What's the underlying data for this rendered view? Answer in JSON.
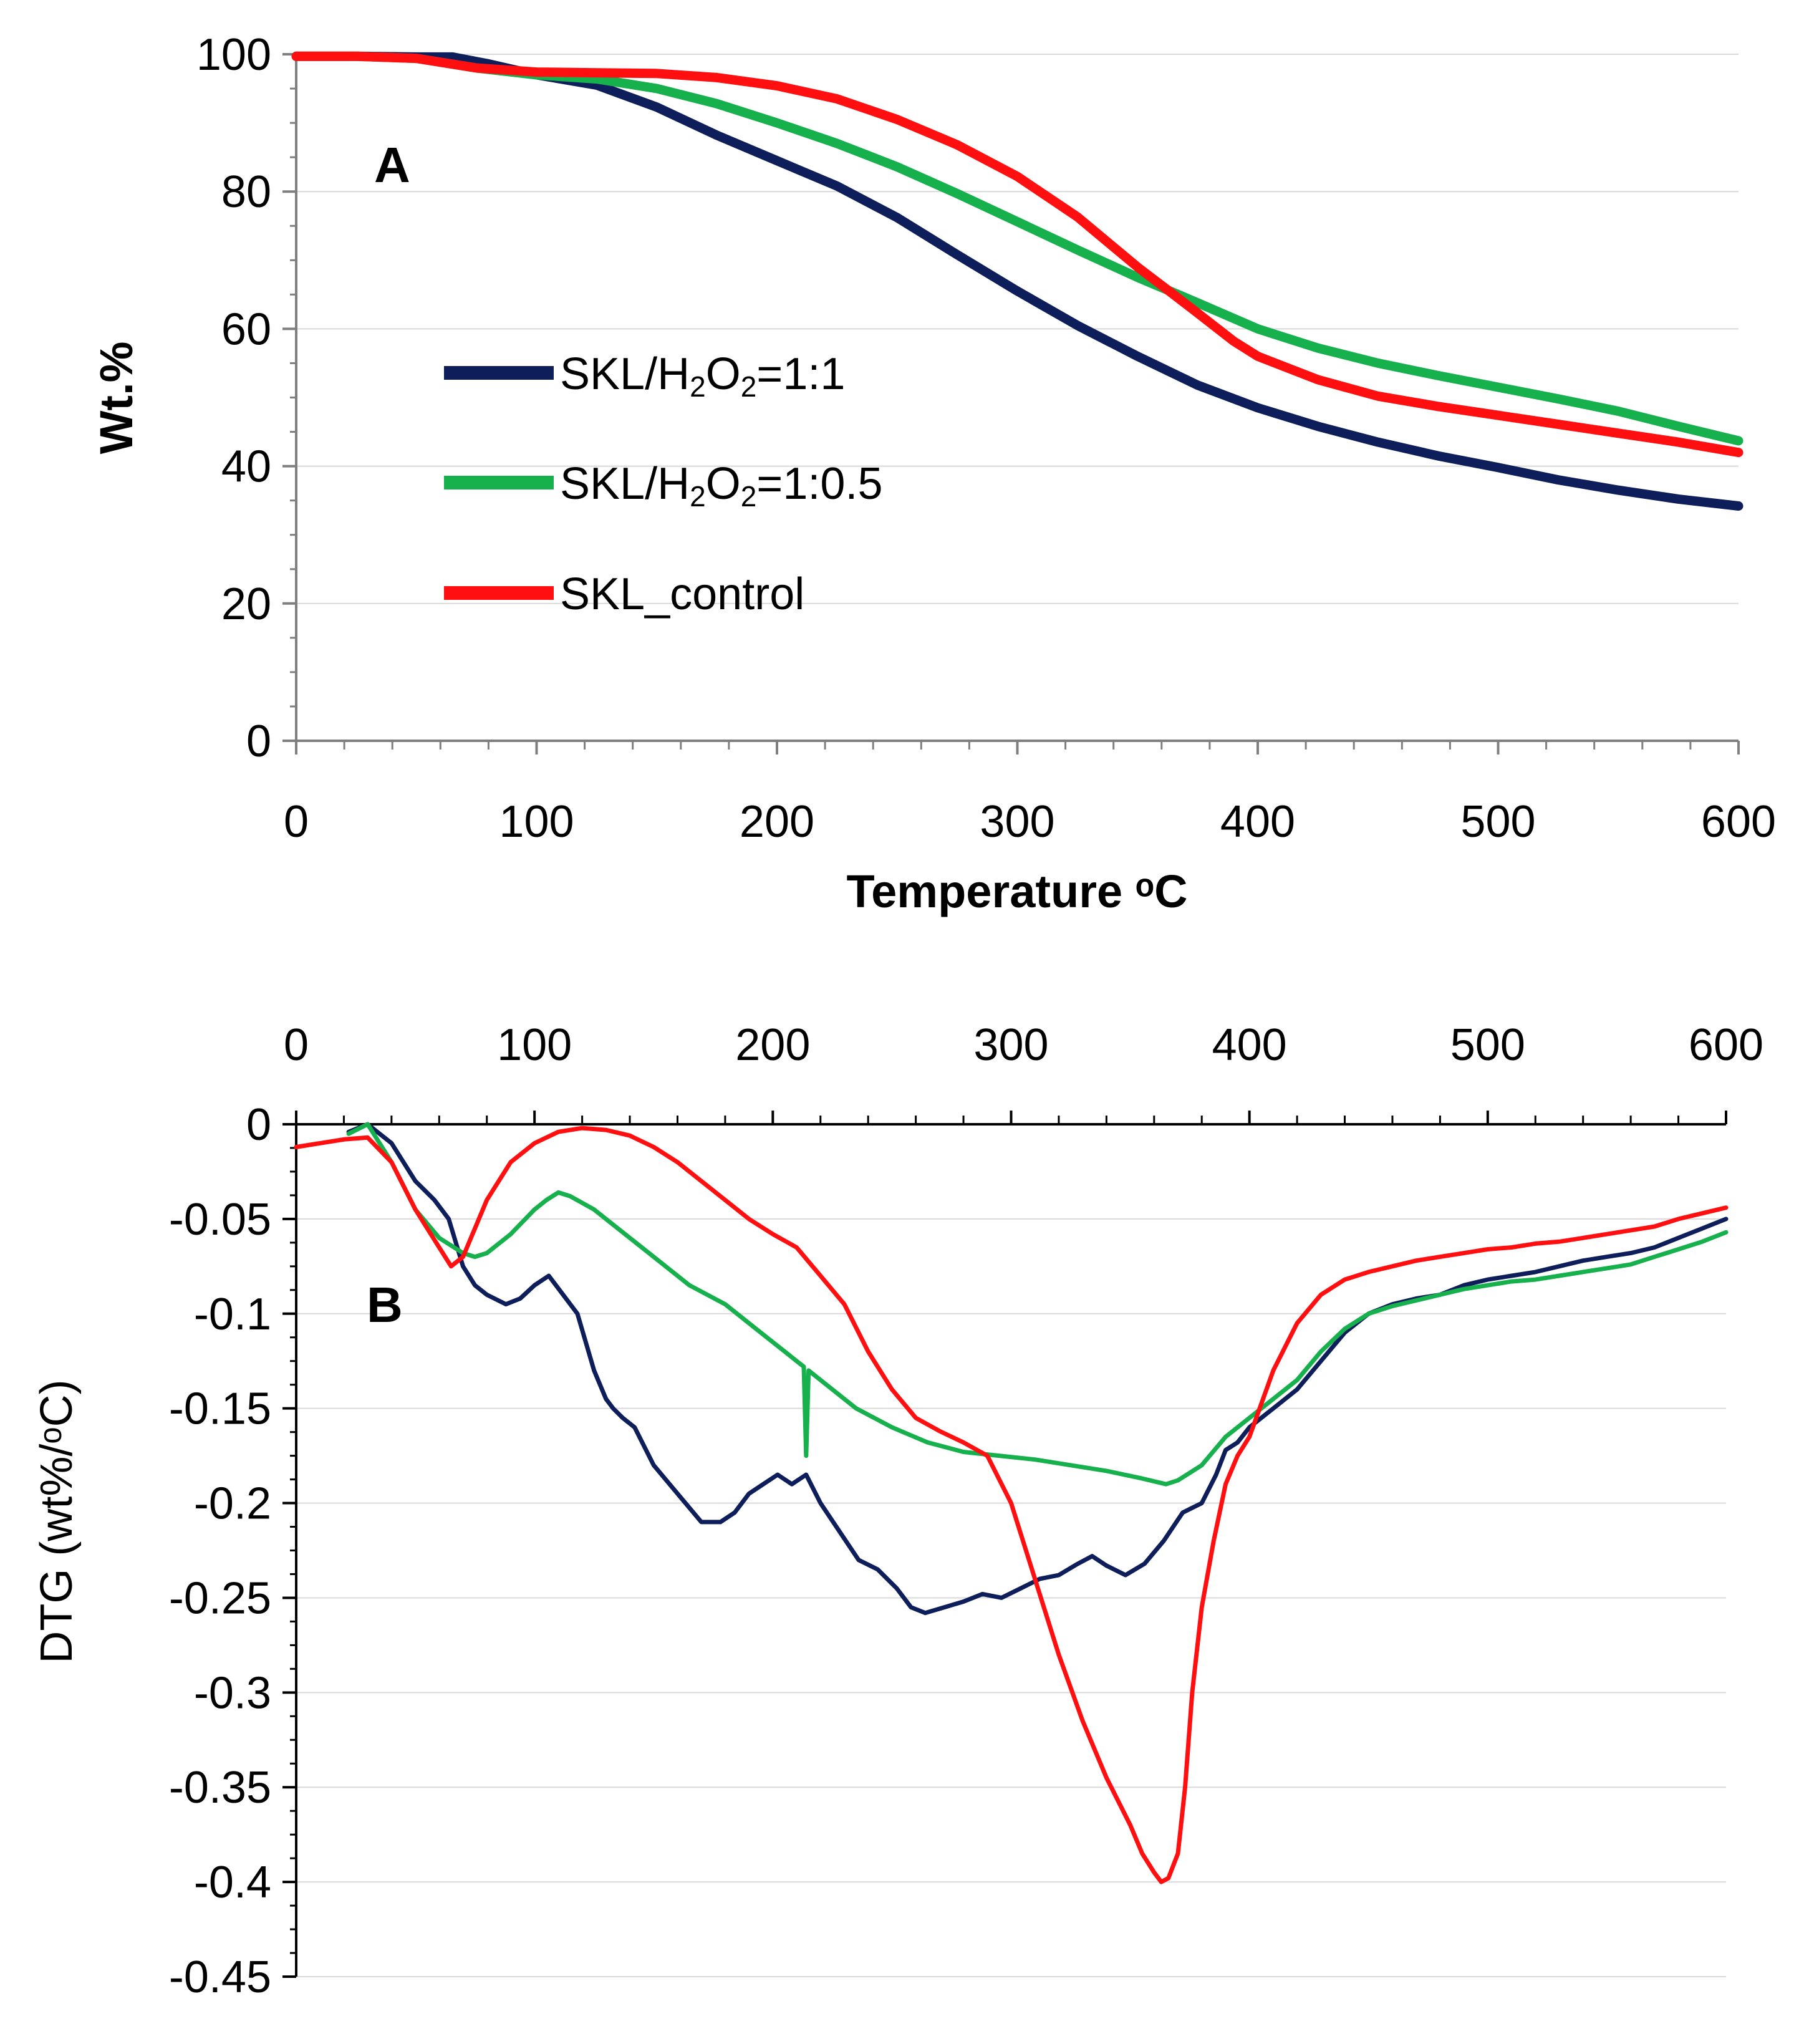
{
  "colors": {
    "skl_h2o2_1_1": "#0d1e5b",
    "skl_h2o2_1_05": "#16b04c",
    "skl_control": "#ff0f0f",
    "grid": "#d9d9d9",
    "axis": "#7f7f7f"
  },
  "chart_data": [
    {
      "panel": "A",
      "type": "line",
      "panel_label": "A",
      "xlabel": "Temperature ᵒC",
      "ylabel": "Wt.%",
      "xlim": [
        0,
        600
      ],
      "ylim": [
        0,
        100
      ],
      "x_ticks": [
        "0",
        "100",
        "200",
        "300",
        "400",
        "500",
        "600"
      ],
      "y_ticks": [
        "0",
        "20",
        "40",
        "60",
        "80",
        "100"
      ],
      "grid": true,
      "legend_position": "center-left",
      "legend": {
        "s1_prefix": "SKL/H",
        "s1_sub1": "2",
        "s1_mid": "O",
        "s1_sub2": "2",
        "s1_suffix": "=1:1",
        "s2_prefix": "SKL/H",
        "s2_sub1": "2",
        "s2_mid": "O",
        "s2_sub2": "2",
        "s2_suffix": "=1:0.5",
        "s3": "SKL_control"
      },
      "series": [
        {
          "name": "SKL/H2O2=1:1",
          "color_key": "skl_h2o2_1_1",
          "x": [
            0,
            25,
            50,
            65,
            80,
            100,
            125,
            150,
            175,
            200,
            225,
            250,
            275,
            300,
            325,
            350,
            375,
            400,
            425,
            450,
            475,
            500,
            525,
            550,
            575,
            600
          ],
          "y": [
            99.7,
            99.7,
            99.6,
            99.6,
            98.6,
            97.0,
            95.5,
            92.3,
            88.2,
            84.5,
            80.8,
            76.2,
            70.8,
            65.5,
            60.5,
            56.0,
            51.8,
            48.5,
            45.8,
            43.5,
            41.5,
            39.8,
            38.0,
            36.5,
            35.2,
            34.2
          ]
        },
        {
          "name": "SKL/H2O2=1:0.5",
          "color_key": "skl_h2o2_1_05",
          "x": [
            0,
            25,
            50,
            75,
            100,
            125,
            150,
            175,
            200,
            225,
            250,
            275,
            300,
            325,
            350,
            375,
            400,
            425,
            450,
            475,
            500,
            525,
            550,
            575,
            600
          ],
          "y": [
            99.7,
            99.7,
            99.4,
            98.0,
            97.0,
            96.4,
            95.0,
            92.8,
            90.0,
            87.0,
            83.6,
            79.7,
            75.6,
            71.5,
            67.5,
            63.8,
            60.0,
            57.2,
            55.0,
            53.2,
            51.5,
            49.8,
            48.0,
            45.8,
            43.7
          ]
        },
        {
          "name": "SKL_control",
          "color_key": "skl_control",
          "x": [
            0,
            25,
            50,
            75,
            100,
            125,
            150,
            175,
            200,
            225,
            250,
            275,
            300,
            325,
            350,
            365,
            375,
            390,
            400,
            425,
            450,
            475,
            500,
            525,
            550,
            575,
            600
          ],
          "y": [
            99.7,
            99.7,
            99.4,
            98.0,
            97.4,
            97.3,
            97.2,
            96.6,
            95.4,
            93.5,
            90.5,
            86.8,
            82.2,
            76.3,
            69.0,
            65.0,
            62.3,
            58.2,
            56.0,
            52.6,
            50.2,
            48.7,
            47.4,
            46.1,
            44.8,
            43.5,
            42.0
          ]
        }
      ]
    },
    {
      "panel": "B",
      "type": "line",
      "panel_label": "B",
      "xlabel": "",
      "ylabel": "DTG (wt%/ᵒC)",
      "xlim": [
        0,
        600
      ],
      "ylim": [
        -0.45,
        0
      ],
      "x_ticks": [
        "0",
        "100",
        "200",
        "300",
        "400",
        "500",
        "600"
      ],
      "y_ticks": [
        "0",
        "-0.05",
        "-0.1",
        "-0.15",
        "-0.2",
        "-0.25",
        "-0.3",
        "-0.35",
        "-0.4",
        "-0.45"
      ],
      "grid": true,
      "x_axis_position": "top",
      "series": [
        {
          "name": "SKL/H2O2=1:1",
          "color_key": "skl_h2o2_1_1",
          "x": [
            22,
            30,
            40,
            50,
            58,
            64,
            70,
            75,
            80,
            88,
            94,
            100,
            106,
            112,
            118,
            125,
            130,
            133,
            137,
            142,
            150,
            160,
            170,
            178,
            184,
            190,
            196,
            202,
            208,
            214,
            220,
            228,
            236,
            244,
            252,
            258,
            264,
            272,
            280,
            288,
            296,
            304,
            312,
            320,
            328,
            334,
            340,
            348,
            356,
            364,
            372,
            380,
            386,
            390,
            395,
            400,
            410,
            420,
            430,
            440,
            450,
            460,
            470,
            480,
            490,
            500,
            510,
            520,
            530,
            540,
            550,
            560,
            570,
            580,
            590,
            600
          ],
          "y": [
            -0.004,
            0,
            -0.01,
            -0.03,
            -0.04,
            -0.05,
            -0.075,
            -0.085,
            -0.09,
            -0.095,
            -0.092,
            -0.085,
            -0.08,
            -0.09,
            -0.1,
            -0.13,
            -0.145,
            -0.15,
            -0.155,
            -0.16,
            -0.18,
            -0.195,
            -0.21,
            -0.21,
            -0.205,
            -0.195,
            -0.19,
            -0.185,
            -0.19,
            -0.185,
            -0.2,
            -0.215,
            -0.23,
            -0.235,
            -0.245,
            -0.255,
            -0.258,
            -0.255,
            -0.252,
            -0.248,
            -0.25,
            -0.245,
            -0.24,
            -0.238,
            -0.232,
            -0.228,
            -0.233,
            -0.238,
            -0.232,
            -0.22,
            -0.205,
            -0.2,
            -0.185,
            -0.172,
            -0.168,
            -0.16,
            -0.15,
            -0.14,
            -0.125,
            -0.11,
            -0.1,
            -0.095,
            -0.092,
            -0.09,
            -0.085,
            -0.082,
            -0.08,
            -0.078,
            -0.075,
            -0.072,
            -0.07,
            -0.068,
            -0.065,
            -0.06,
            -0.055,
            -0.05
          ]
        },
        {
          "name": "SKL/H2O2=1:0.5",
          "color_key": "skl_h2o2_1_05",
          "x": [
            22,
            30,
            40,
            50,
            60,
            70,
            75,
            80,
            90,
            100,
            105,
            110,
            115,
            125,
            135,
            150,
            165,
            180,
            195,
            205,
            210,
            213,
            214,
            215,
            220,
            235,
            250,
            265,
            280,
            295,
            310,
            325,
            340,
            355,
            365,
            370,
            380,
            390,
            400,
            410,
            420,
            430,
            440,
            450,
            460,
            470,
            480,
            490,
            500,
            510,
            520,
            530,
            540,
            550,
            560,
            570,
            580,
            590,
            600
          ],
          "y": [
            -0.005,
            0,
            -0.02,
            -0.045,
            -0.06,
            -0.068,
            -0.07,
            -0.068,
            -0.058,
            -0.045,
            -0.04,
            -0.036,
            -0.038,
            -0.045,
            -0.055,
            -0.07,
            -0.085,
            -0.095,
            -0.11,
            -0.12,
            -0.125,
            -0.128,
            -0.175,
            -0.13,
            -0.135,
            -0.15,
            -0.16,
            -0.168,
            -0.173,
            -0.175,
            -0.177,
            -0.18,
            -0.183,
            -0.187,
            -0.19,
            -0.188,
            -0.18,
            -0.165,
            -0.155,
            -0.145,
            -0.135,
            -0.12,
            -0.108,
            -0.1,
            -0.096,
            -0.093,
            -0.09,
            -0.087,
            -0.085,
            -0.083,
            -0.082,
            -0.08,
            -0.078,
            -0.076,
            -0.074,
            -0.07,
            -0.066,
            -0.062,
            -0.057
          ]
        },
        {
          "name": "SKL_control",
          "color_key": "skl_control",
          "x": [
            0,
            10,
            20,
            30,
            40,
            50,
            60,
            65,
            70,
            75,
            80,
            85,
            90,
            100,
            110,
            120,
            130,
            140,
            150,
            160,
            170,
            180,
            190,
            200,
            210,
            220,
            230,
            240,
            250,
            260,
            270,
            280,
            290,
            300,
            310,
            320,
            330,
            340,
            350,
            355,
            360,
            363,
            366,
            370,
            373,
            376,
            380,
            385,
            390,
            395,
            400,
            410,
            420,
            430,
            440,
            450,
            460,
            470,
            480,
            490,
            500,
            510,
            520,
            530,
            540,
            550,
            560,
            570,
            580,
            590,
            600
          ],
          "y": [
            -0.012,
            -0.01,
            -0.008,
            -0.007,
            -0.02,
            -0.045,
            -0.065,
            -0.075,
            -0.07,
            -0.055,
            -0.04,
            -0.03,
            -0.02,
            -0.01,
            -0.004,
            -0.002,
            -0.003,
            -0.006,
            -0.012,
            -0.02,
            -0.03,
            -0.04,
            -0.05,
            -0.058,
            -0.065,
            -0.08,
            -0.095,
            -0.12,
            -0.14,
            -0.155,
            -0.162,
            -0.168,
            -0.175,
            -0.2,
            -0.24,
            -0.28,
            -0.315,
            -0.345,
            -0.37,
            -0.385,
            -0.395,
            -0.4,
            -0.398,
            -0.385,
            -0.35,
            -0.3,
            -0.255,
            -0.22,
            -0.19,
            -0.175,
            -0.165,
            -0.13,
            -0.105,
            -0.09,
            -0.082,
            -0.078,
            -0.075,
            -0.072,
            -0.07,
            -0.068,
            -0.066,
            -0.065,
            -0.063,
            -0.062,
            -0.06,
            -0.058,
            -0.056,
            -0.054,
            -0.05,
            -0.047,
            -0.044
          ]
        }
      ]
    }
  ]
}
